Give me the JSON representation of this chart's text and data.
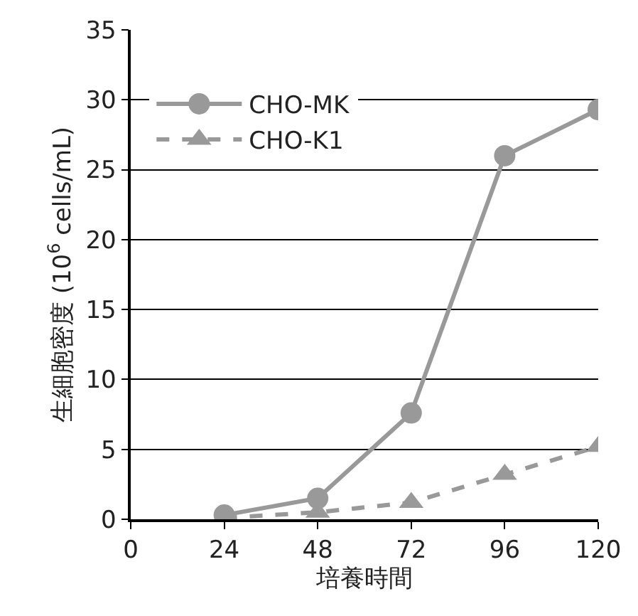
{
  "chart_data": {
    "type": "line",
    "xlabel": "培養時間",
    "ylabel": "生細胞密度 (10$^{6}$ cells/mL)",
    "x": [
      24,
      48,
      72,
      96,
      120
    ],
    "series": [
      {
        "name": "CHO-MK",
        "color": "#999999",
        "values": [
          0.3,
          1.5,
          7.6,
          26,
          29.3
        ],
        "marker": "circle",
        "line_style": "solid"
      },
      {
        "name": "CHO-K1",
        "color": "#999999",
        "values": [
          0.1,
          0.5,
          1.2,
          3.2,
          5.2
        ],
        "marker": "triangle",
        "line_style": "dashed"
      }
    ],
    "xlim": [
      0,
      120
    ],
    "xticks": [
      0,
      24,
      48,
      72,
      96,
      120
    ],
    "ylim": [
      0,
      35
    ],
    "yticks": [
      0,
      5,
      10,
      15,
      20,
      25,
      30,
      35
    ],
    "grid": "y",
    "legend": "top left"
  }
}
